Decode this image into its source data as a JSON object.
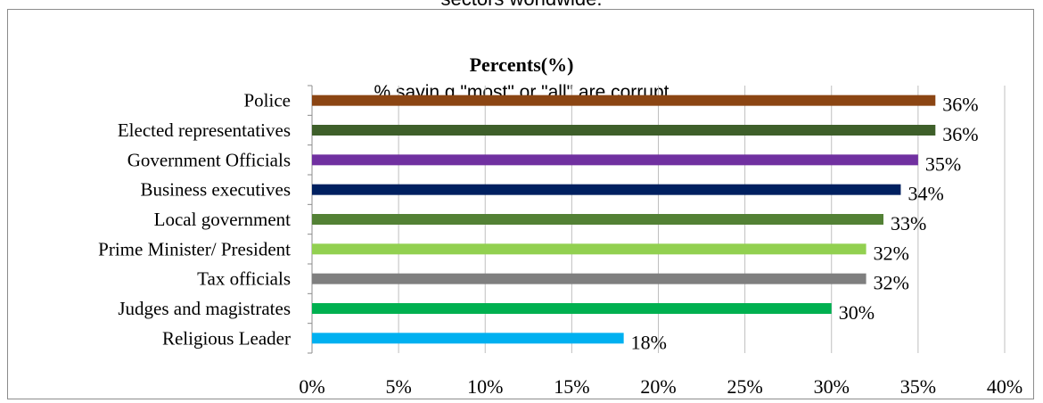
{
  "header": {
    "cut_caption": "sectors worldwide."
  },
  "chart_data": {
    "type": "bar",
    "orientation": "horizontal",
    "title": "Percents(%)",
    "subtitle": "% sayin g \"most\"  or \"all\" are corrupt",
    "xlabel": "",
    "ylabel": "",
    "xlim": [
      0,
      40
    ],
    "x_ticks": [
      "0%",
      "5%",
      "10%",
      "15%",
      "20%",
      "25%",
      "30%",
      "35%",
      "40%"
    ],
    "grid": "vertical",
    "legend": "none",
    "categories": [
      "Police",
      "Elected representatives",
      "Government Officials",
      "Business executives",
      "Local government",
      "Prime Minister/ President",
      "Tax officials",
      "Judges and magistrates",
      "Religious Leader"
    ],
    "values": [
      36,
      36,
      35,
      34,
      33,
      32,
      32,
      30,
      18
    ],
    "value_labels": [
      "36%",
      "36%",
      "35%",
      "34%",
      "33%",
      "32%",
      "32%",
      "30%",
      "18%"
    ],
    "colors": [
      "#8B4513",
      "#3E5F2A",
      "#7030A0",
      "#002060",
      "#538135",
      "#92D050",
      "#7F7F7F",
      "#00B050",
      "#00B0F0"
    ]
  }
}
